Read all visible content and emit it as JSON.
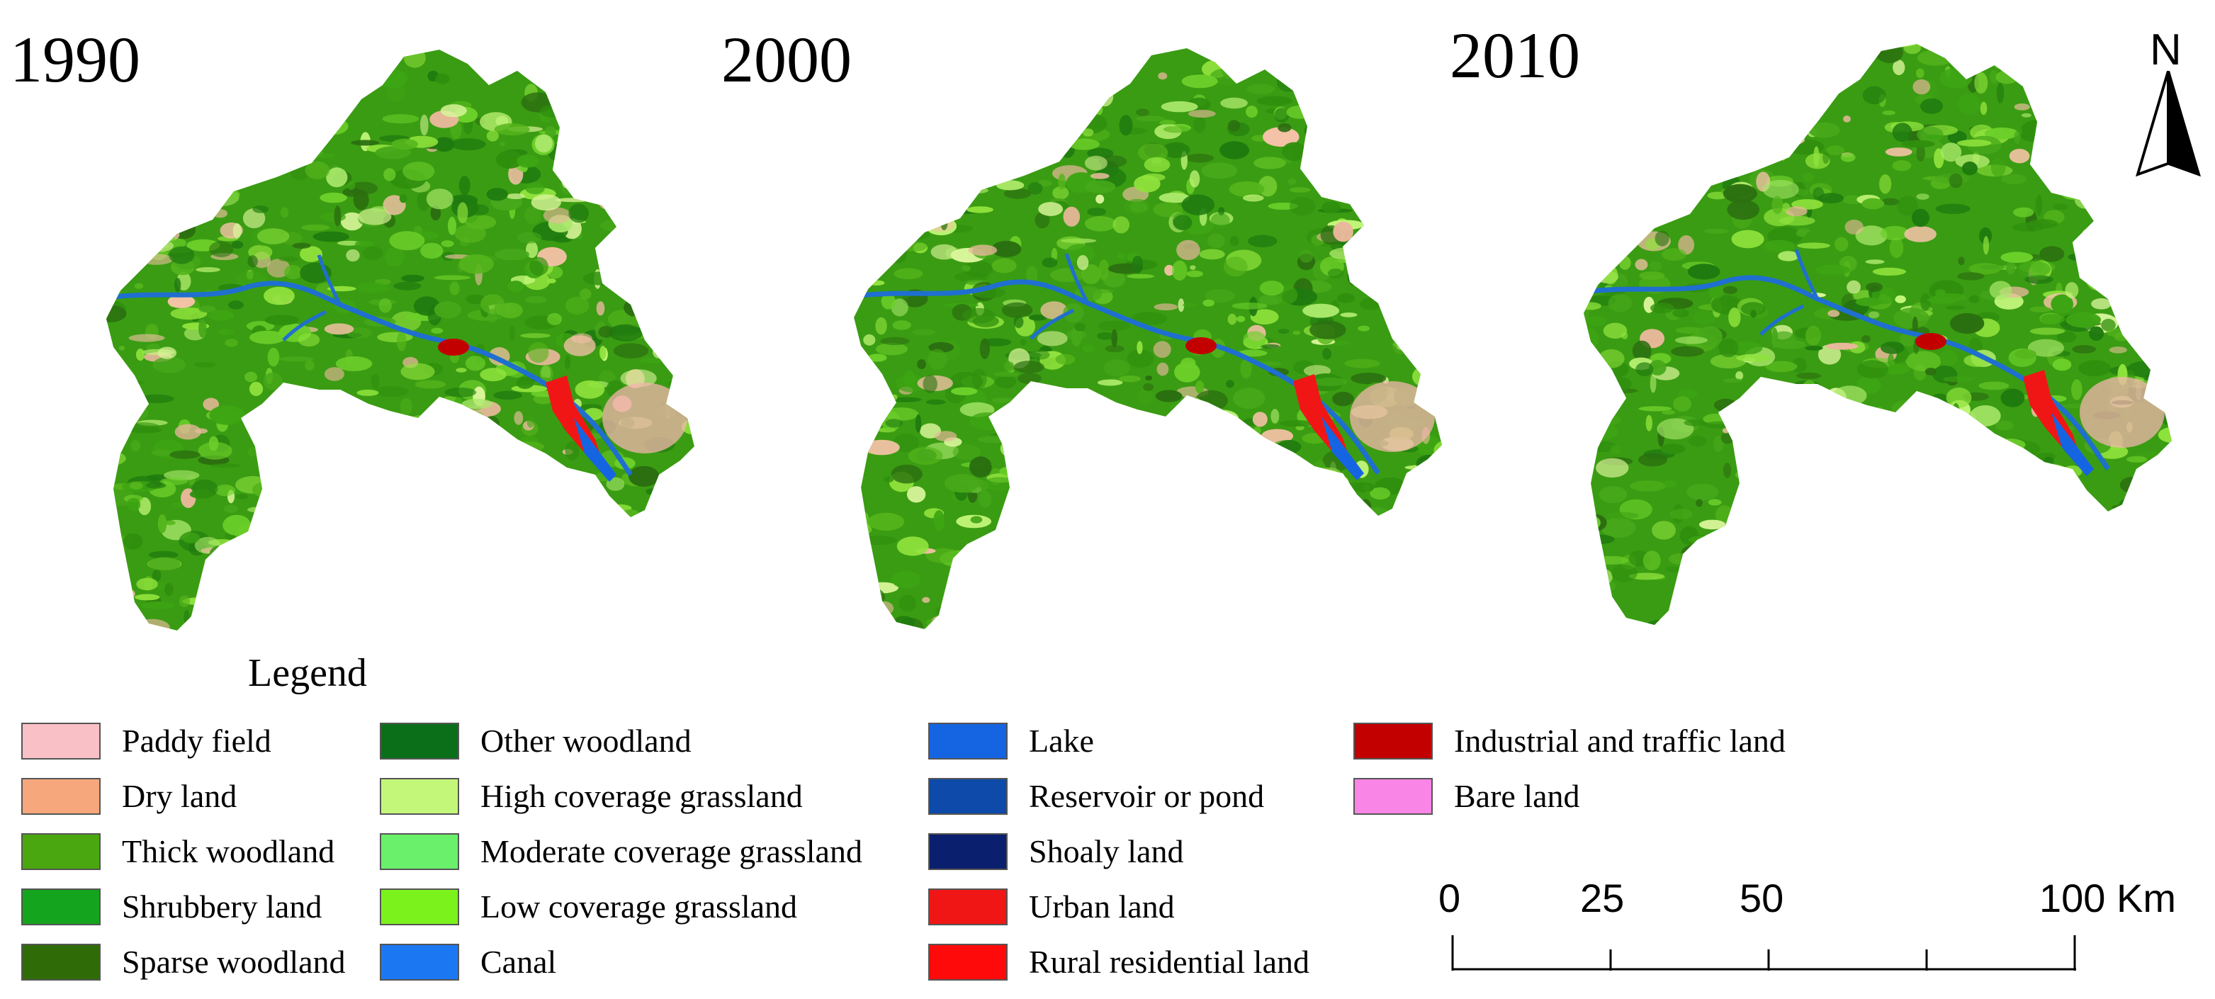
{
  "maps": [
    {
      "year": "1990"
    },
    {
      "year": "2000"
    },
    {
      "year": "2010"
    }
  ],
  "north_label": "N",
  "legend": {
    "title": "Legend",
    "items": [
      {
        "label": "Paddy field",
        "color": "#f9c0c6"
      },
      {
        "label": "Dry land",
        "color": "#f7a77c"
      },
      {
        "label": "Thick woodland",
        "color": "#4aa70f"
      },
      {
        "label": "Shrubbery land",
        "color": "#15a41e"
      },
      {
        "label": "Sparse woodland",
        "color": "#2f6c08"
      },
      {
        "label": "Other woodland",
        "color": "#0b6f1a"
      },
      {
        "label": "High coverage grassland",
        "color": "#c3f77a"
      },
      {
        "label": "Moderate coverage grassland",
        "color": "#6af06a"
      },
      {
        "label": "Low coverage grassland",
        "color": "#7cf21d"
      },
      {
        "label": "Canal",
        "color": "#1b78f2"
      },
      {
        "label": "Lake",
        "color": "#1565e2"
      },
      {
        "label": "Reservoir or pond",
        "color": "#0d4aa9"
      },
      {
        "label": "Shoaly land",
        "color": "#0a1f6e"
      },
      {
        "label": "Urban  land",
        "color": "#f01616"
      },
      {
        "label": "Rural residential land",
        "color": "#ff0a0a"
      },
      {
        "label": "Industrial and traffic land",
        "color": "#c20000"
      },
      {
        "label": "Bare land",
        "color": "#f985e6"
      }
    ]
  },
  "scale": {
    "ticks": [
      "0",
      "25",
      "50",
      "100 Km"
    ],
    "tick_values_km": [
      0,
      25,
      50,
      100
    ]
  }
}
